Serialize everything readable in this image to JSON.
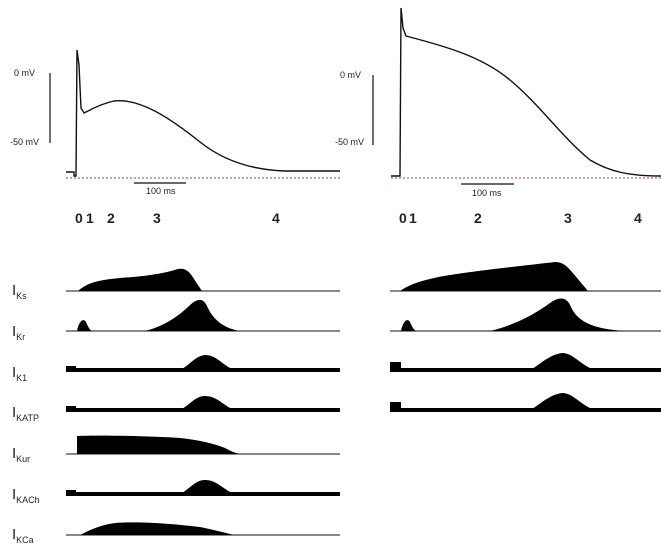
{
  "panels": [
    {
      "id": "left",
      "voltage_labels": [
        "0 mV",
        "-50 mV"
      ],
      "scale_label": "100 ms",
      "phases": [
        "0",
        "1",
        "2",
        "3",
        "4"
      ]
    },
    {
      "id": "right",
      "voltage_labels": [
        "0 mV",
        "-50 mV"
      ],
      "scale_label": "100 ms",
      "phases": [
        "0",
        "1",
        "2",
        "3",
        "4"
      ]
    }
  ],
  "currents": [
    {
      "main": "I",
      "sub": "Ks"
    },
    {
      "main": "I",
      "sub": "Kr"
    },
    {
      "main": "I",
      "sub": "K1"
    },
    {
      "main": "I",
      "sub": "KATP"
    },
    {
      "main": "I",
      "sub": "Kur"
    },
    {
      "main": "I",
      "sub": "KACh"
    },
    {
      "main": "I",
      "sub": "KCa"
    }
  ],
  "colors": {
    "trace": "#111111",
    "fill": "#000000",
    "rest_line": "#b06a50"
  }
}
